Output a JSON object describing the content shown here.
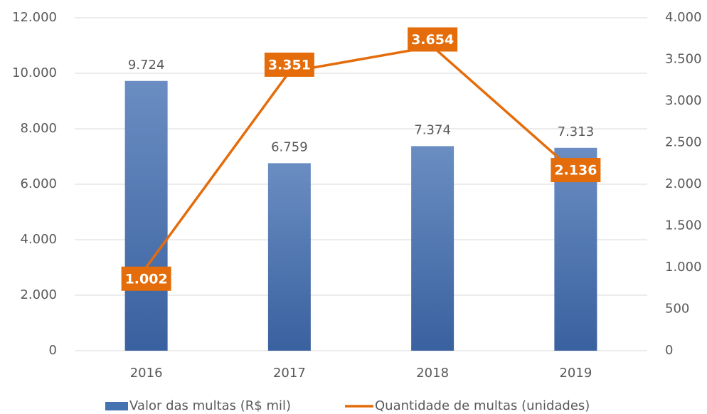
{
  "chart_data": {
    "type": "bar",
    "categories": [
      "2016",
      "2017",
      "2018",
      "2019"
    ],
    "series": [
      {
        "name": "Valor das multas (R$ mil)",
        "type": "bar",
        "color": "#4672b0",
        "values": [
          9724,
          6759,
          7374,
          7313
        ],
        "value_labels": [
          "9.724",
          "6.759",
          "7.374",
          "7.313"
        ]
      },
      {
        "name": "Quantidade de multas (unidades)",
        "type": "line",
        "axis": "y2",
        "color": "#e46c0a",
        "values": [
          1002,
          3351,
          3654,
          2136
        ],
        "value_labels": [
          "1.002",
          "3.351",
          "3.654",
          "2.136"
        ]
      }
    ],
    "ylim": [
      0,
      12000
    ],
    "yticks": [
      0,
      {
        "value": 2000,
        "label": "2.000"
      },
      {
        "value": 4000,
        "label": "4.000"
      },
      {
        "value": 6000,
        "label": "6.000"
      },
      {
        "value": 8000,
        "label": "8.000"
      },
      {
        "value": 10000,
        "label": "10.000"
      },
      {
        "value": 12000,
        "label": "12.000"
      }
    ],
    "y2lim": [
      0,
      4000
    ],
    "y2ticks": [
      0,
      500,
      {
        "value": 1000,
        "label": "1.000"
      },
      {
        "value": 1500,
        "label": "1.500"
      },
      {
        "value": 2000,
        "label": "2.000"
      },
      {
        "value": 2500,
        "label": "2.500"
      },
      {
        "value": 3000,
        "label": "3.000"
      },
      {
        "value": 3500,
        "label": "3.500"
      },
      {
        "value": 4000,
        "label": "4.000"
      }
    ],
    "grid": true,
    "legend": "bottom"
  }
}
